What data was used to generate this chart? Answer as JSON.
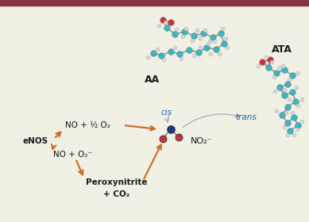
{
  "bg_color": "#f0f0e4",
  "border_color": "#8b3040",
  "arrow_color": "#cc6820",
  "text_color_dark": "#1a1a1a",
  "text_color_blue": "#2060b0",
  "label_AA": "AA",
  "label_ATA": "ATA",
  "label_cis": "cis",
  "label_trans": "trans",
  "label_eNOS": "eNOS",
  "label_NO_O2half": "NO + ½ O₂",
  "label_NO_O2rad": "NO + O₂⁻",
  "label_Peroxynitrite": "Peroxynitrite",
  "label_CO2": "+ CO₂",
  "label_NO2": "NO₂⁻",
  "teal": "#35b8c8",
  "white_atom": "#d8d8d0",
  "red_atom": "#cc3030",
  "blue_atom": "#223388",
  "bond_color": "#888888"
}
